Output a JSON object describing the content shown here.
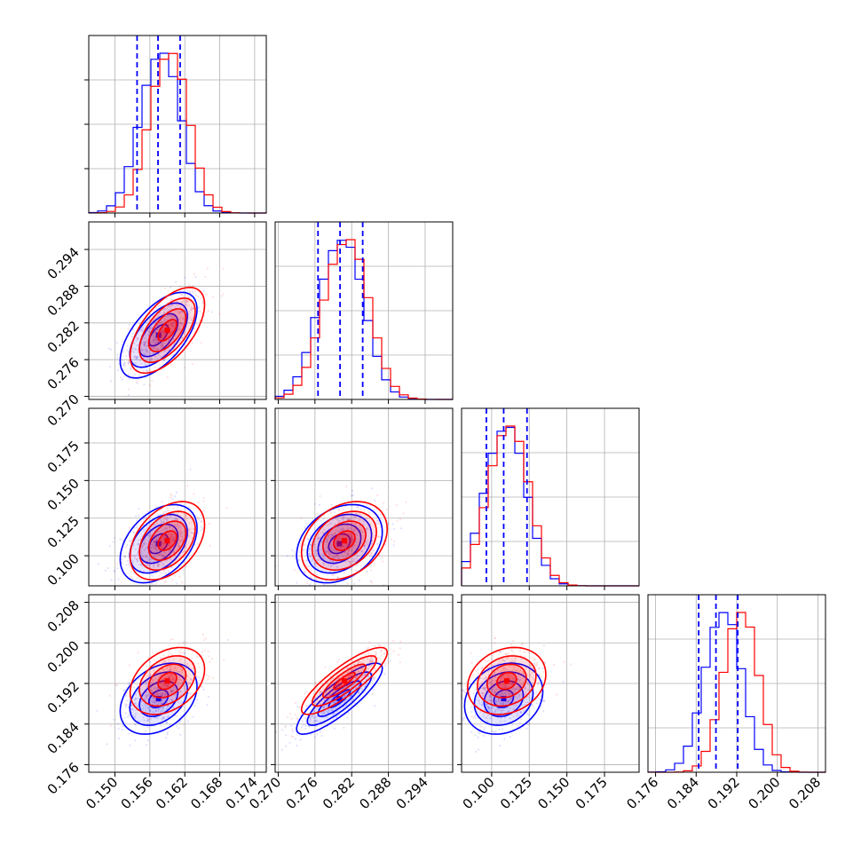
{
  "chart_data": {
    "type": "corner",
    "title": "",
    "grid": true,
    "parameters": [
      {
        "ticks": [
          0.15,
          0.156,
          0.162,
          0.168,
          0.174
        ],
        "tick_labels": [
          "0.150",
          "0.156",
          "0.162",
          "0.168",
          "0.174"
        ],
        "range": [
          0.1455,
          0.176
        ]
      },
      {
        "ticks": [
          0.27,
          0.276,
          0.282,
          0.288,
          0.294
        ],
        "tick_labels": [
          "0.270",
          "0.276",
          "0.282",
          "0.288",
          "0.294"
        ],
        "range": [
          0.2695,
          0.2985
        ]
      },
      {
        "ticks": [
          0.1,
          0.125,
          0.15,
          0.175
        ],
        "tick_labels": [
          "0.100",
          "0.125",
          "0.150",
          "0.175"
        ],
        "range": [
          0.08,
          0.198
        ]
      },
      {
        "ticks": [
          0.176,
          0.184,
          0.192,
          0.2,
          0.208
        ],
        "tick_labels": [
          "0.176",
          "0.184",
          "0.192",
          "0.200",
          "0.208"
        ],
        "range": [
          0.1745,
          0.2095
        ]
      }
    ],
    "series": [
      {
        "color": "#0000ff",
        "means": [
          0.1575,
          0.28,
          0.108,
          0.189
        ],
        "stds": [
          0.0033,
          0.0035,
          0.013,
          0.0035
        ],
        "quantiles": [
          [
            0.1538,
            0.1574,
            0.1612
          ],
          [
            0.2765,
            0.2801,
            0.2838
          ],
          [
            0.0965,
            0.108,
            0.1235
          ],
          [
            0.1845,
            0.1879,
            0.1922
          ]
        ],
        "correlations": {
          "0-1": 0.6,
          "0-2": 0.4,
          "1-2": 0.3,
          "0-3": 0.35,
          "1-3": 0.85,
          "2-3": 0.2
        }
      },
      {
        "color": "#ff0000",
        "means": [
          0.159,
          0.2808,
          0.11,
          0.1925
        ],
        "stds": [
          0.0032,
          0.0035,
          0.013,
          0.0033
        ],
        "correlations": {
          "0-1": 0.6,
          "0-2": 0.4,
          "1-2": 0.3,
          "0-3": 0.35,
          "1-3": 0.85,
          "2-3": 0.2
        }
      }
    ]
  }
}
